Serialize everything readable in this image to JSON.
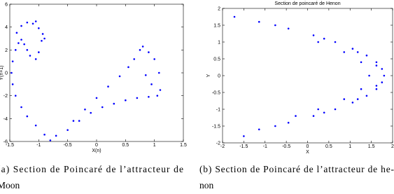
{
  "chart_data": [
    {
      "type": "scatter",
      "x_label": "X(n)",
      "y_label": "Y(n+1)",
      "color": "#0000ff",
      "x": [
        -1.4,
        -1.35,
        -1.3,
        -1.25,
        -1.2,
        -1.15,
        -1.05,
        -1.0,
        -0.95,
        -0.93,
        -1.0,
        -1.1,
        -1.2,
        -1.3,
        -1.38,
        -0.9,
        -1.05,
        -1.45,
        -1.47,
        -1.45,
        -1.4,
        -1.3,
        -1.2,
        -1.05,
        -0.9,
        -0.8,
        -0.7,
        -0.5,
        -0.3,
        -0.1,
        0.1,
        0.3,
        0.5,
        0.7,
        0.9,
        1.05,
        -0.4,
        -0.2,
        0,
        0.2,
        0.4,
        0.55,
        0.65,
        0.75,
        0.8,
        1.1,
        1.08,
        1.0,
        0.9,
        0.95,
        0.85
      ],
      "y": [
        2.0,
        2.6,
        2.9,
        2.5,
        2.0,
        1.5,
        1.2,
        1.8,
        2.8,
        3.4,
        3.9,
        4.3,
        4.4,
        4.1,
        3.5,
        3.0,
        4.5,
        1.0,
        0,
        -1,
        -2,
        -3,
        -3.8,
        -4.6,
        -5.4,
        -5.9,
        -5.5,
        -5,
        -4.2,
        -3.5,
        -3,
        -2.7,
        -2.4,
        -2.2,
        -2.1,
        -2.0,
        -4.2,
        -3.2,
        -2.2,
        -1.2,
        -0.3,
        0.5,
        1.2,
        2.0,
        2.3,
        -1.5,
        0,
        1.2,
        1.8,
        -1.0,
        -0.2
      ],
      "xlim": [
        -1.5,
        1.5
      ],
      "xticks": [
        -1.5,
        -1,
        -0.5,
        0,
        0.5,
        1,
        1.5
      ],
      "ylim": [
        -6,
        6
      ],
      "yticks": [
        -6,
        -4,
        -2,
        0,
        2,
        4,
        6
      ],
      "caption": [
        "(a) Section de Poincaré de l’attracteur de",
        "Moon"
      ]
    },
    {
      "type": "scatter",
      "title": "Section de poincaré de Henon",
      "x_label": "X",
      "y_label": "Y",
      "color": "#0000ff",
      "x": [
        -1.72,
        -1.14,
        -0.45,
        0.14,
        0.65,
        1.06,
        1.39,
        1.62,
        1.75,
        1.8,
        1.75,
        1.62,
        1.39,
        1.06,
        0.65,
        0.14,
        -0.45,
        -1.14,
        -1.5,
        -0.76,
        0.39,
        1.18,
        1.62,
        1.62,
        1.18,
        0.39,
        -0.76,
        0.25,
        0.86,
        1.26,
        1.45,
        1.26,
        0.86,
        0.25,
        -0.28
      ],
      "y": [
        1.75,
        1.6,
        1.4,
        1.2,
        1.0,
        0.8,
        0.6,
        0.4,
        0.2,
        0,
        -0.2,
        -0.4,
        -0.6,
        -0.8,
        -1.0,
        -1.2,
        -1.4,
        -1.6,
        -1.8,
        1.5,
        1.1,
        0.7,
        0.3,
        -0.3,
        -0.7,
        -1.1,
        -1.5,
        1.0,
        0.7,
        0.4,
        0,
        -0.4,
        -0.7,
        -1.0,
        -1.2
      ],
      "xlim": [
        -2,
        2
      ],
      "xticks": [
        -2,
        -1.5,
        -1,
        -0.5,
        0,
        0.5,
        1,
        1.5,
        2
      ],
      "ylim": [
        -2,
        2
      ],
      "yticks": [
        -2,
        -1.5,
        -1,
        -0.5,
        0,
        0.5,
        1,
        1.5,
        2
      ],
      "caption": [
        "(b) Section de Poincaré de l’attracteur de he-",
        "non"
      ]
    }
  ]
}
